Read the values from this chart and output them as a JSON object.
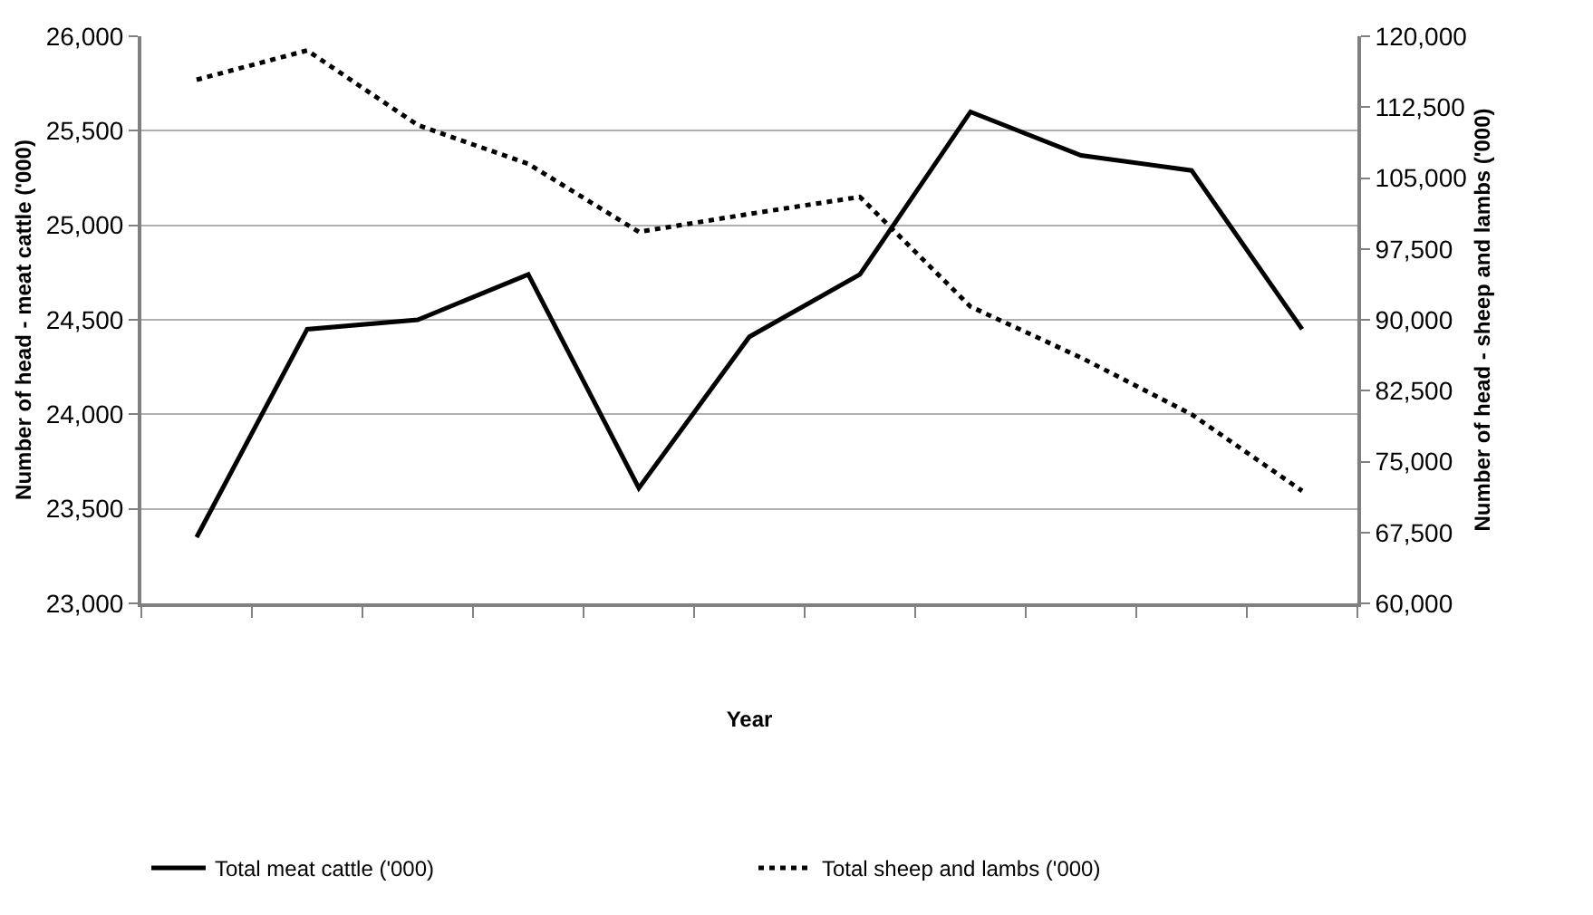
{
  "chart_data": {
    "type": "line",
    "xlabel": "Year",
    "ylabel": "Number of head - meat cattle ('000)",
    "y2label": "Number of head - sheep and lambs ('000)",
    "categories": [
      null,
      null,
      null,
      null,
      null,
      null,
      null,
      null,
      null,
      null,
      null
    ],
    "series": [
      {
        "name": "Total meat cattle ('000)",
        "color": "#000000",
        "line_style": "solid",
        "values": [
          23350,
          24450,
          24500,
          24740,
          23610,
          24410,
          24740,
          25600,
          25370,
          25290,
          24450
        ]
      },
      {
        "name": "Total sheep and lambs ('000)",
        "color": "#000000",
        "line_style": "dotted",
        "axis": "y2",
        "values": [
          115400,
          118500,
          110600,
          106500,
          99300,
          101200,
          103000,
          91400,
          86000,
          80000,
          71900
        ]
      }
    ],
    "ylim": [
      23000,
      26000
    ],
    "yticks": [
      {
        "value": 23000,
        "label": "23,000"
      },
      {
        "value": 23500,
        "label": "23,500"
      },
      {
        "value": 24000,
        "label": "24,000"
      },
      {
        "value": 24500,
        "label": "24,500"
      },
      {
        "value": 25000,
        "label": "25,000"
      },
      {
        "value": 25500,
        "label": "25,500"
      },
      {
        "value": 26000,
        "label": "26,000"
      }
    ],
    "y2lim": [
      60000,
      120000
    ],
    "y2ticks": [
      {
        "value": 60000,
        "label": "60,000"
      },
      {
        "value": 67500,
        "label": "67,500"
      },
      {
        "value": 75000,
        "label": "75,000"
      },
      {
        "value": 82500,
        "label": "82,500"
      },
      {
        "value": 90000,
        "label": "90,000"
      },
      {
        "value": 97500,
        "label": "97,500"
      },
      {
        "value": 105000,
        "label": "105,000"
      },
      {
        "value": 112500,
        "label": "112,500"
      },
      {
        "value": 120000,
        "label": "120,000"
      }
    ],
    "grid": "y",
    "legend": "bottom",
    "marker": "none"
  }
}
